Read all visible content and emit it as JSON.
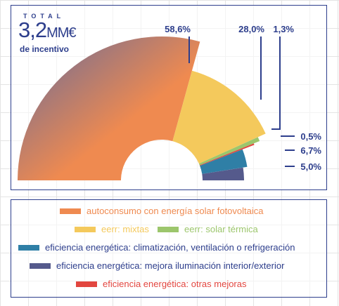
{
  "header": {
    "total_label": "TOTAL",
    "total_number": "3,2",
    "total_unit": "MM€",
    "total_sub": "de incentivo"
  },
  "chart_data": {
    "type": "pie",
    "style": "half-donut",
    "categories": [
      "autoconsumo con energía solar fotovoltaica",
      "eerr: mixtas",
      "eerr: solar térmica",
      "eficiencia energética: otras mejoras",
      "eficiencia energética: climatización, ventilación o refrigeración",
      "eficiencia energética: mejora iluminación interior/exterior"
    ],
    "values": [
      58.6,
      28.0,
      1.3,
      0.5,
      6.7,
      5.0
    ],
    "value_labels": [
      "58,6%",
      "28,0%",
      "1,3%",
      "0,5%",
      "6,7%",
      "5,0%"
    ],
    "colors": [
      "#ef8a50",
      "#f4c95c",
      "#9cc66c",
      "#e2463f",
      "#2f7fa6",
      "#555a8c"
    ],
    "gradient_start_color": "#666a9a"
  },
  "legend": {
    "items": [
      {
        "label": "autoconsumo con energía solar fotovoltaica",
        "color": "#ef8a50"
      },
      {
        "label": "eerr: mixtas",
        "color": "#f4c95c"
      },
      {
        "label": "eerr: solar térmica",
        "color": "#9cc66c"
      },
      {
        "label": "eficiencia energética: climatización, ventilación o refrigeración",
        "color": "#2f7fa6"
      },
      {
        "label": "eficiencia energética: mejora iluminación interior/exterior",
        "color": "#555a8c"
      },
      {
        "label": "eficiencia energética: otras mejoras",
        "color": "#e2463f"
      }
    ]
  }
}
